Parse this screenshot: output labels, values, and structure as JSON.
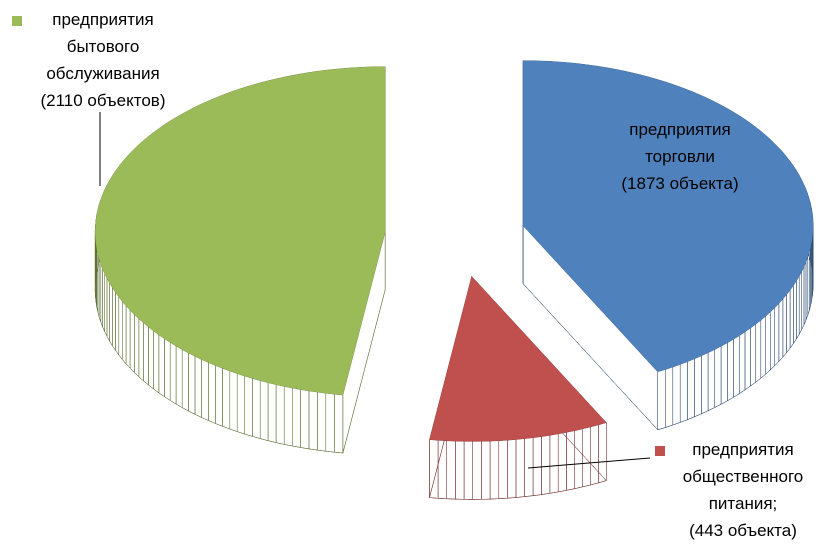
{
  "chart_data": {
    "type": "pie3d",
    "categories": [
      "предприятия бытового обслуживания",
      "предприятия торговли",
      "предприятия общественного питания;"
    ],
    "values": [
      2110,
      1873,
      443
    ],
    "value_labels": [
      "(2110 объектов)",
      "(1873 объекта)",
      "(443 объекта)"
    ],
    "colors": [
      "#9bbb59",
      "#4f81bd",
      "#c0504d"
    ]
  }
}
